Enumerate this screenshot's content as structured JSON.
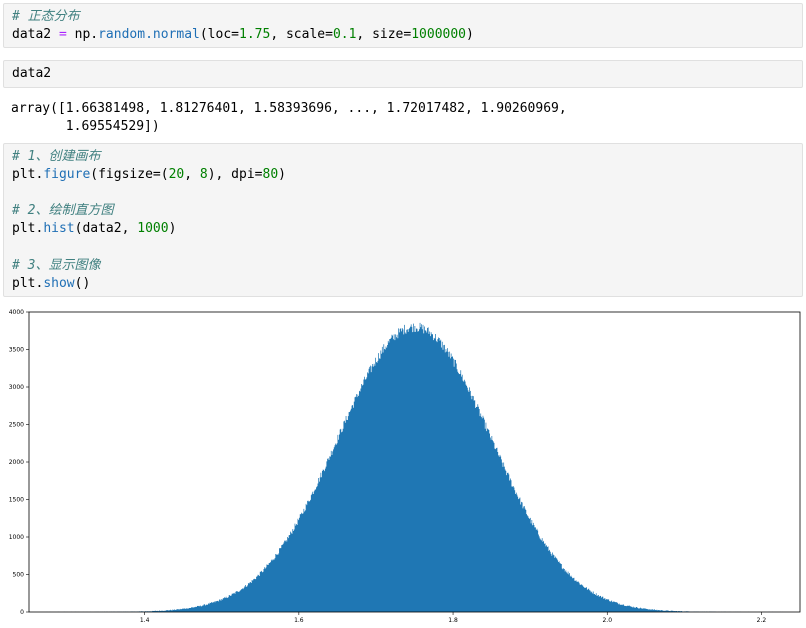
{
  "cell1": {
    "comment": "# 正态分布",
    "code": {
      "var": "data2",
      "eq": " = ",
      "mod": "np.",
      "fn": "random.normal",
      "open": "(loc=",
      "loc": "1.75",
      "mid1": ", scale=",
      "scale": "0.1",
      "mid2": ", size=",
      "size": "1000000",
      "close": ")"
    }
  },
  "cell2": {
    "code": "data2"
  },
  "output": {
    "line1": "array([1.66381498, 1.81276401, 1.58393696, ..., 1.72017482, 1.90260969,",
    "line2": "       1.69554529])"
  },
  "cell3": {
    "c1": "# 1、创建画布",
    "l1": {
      "a": "plt.",
      "b": "figure",
      "c": "(figsize=(",
      "d": "20",
      "e": ", ",
      "f": "8",
      "g": "), dpi=",
      "h": "80",
      "i": ")"
    },
    "c2": "# 2、绘制直方图",
    "l2": {
      "a": "plt.",
      "b": "hist",
      "c": "(data2, ",
      "d": "1000",
      "e": ")"
    },
    "c3": "# 3、显示图像",
    "l3": {
      "a": "plt.",
      "b": "show",
      "c": "()"
    }
  },
  "chart_data": {
    "type": "histogram",
    "distribution": "normal",
    "loc": 1.75,
    "scale": 0.1,
    "size": 1000000,
    "bins": 1000,
    "color": "#1f77b4",
    "xlim": [
      1.25,
      2.25
    ],
    "ylim": [
      0,
      4000
    ],
    "peak_count": 3800,
    "xticks": [
      "1.4",
      "1.6",
      "1.8",
      "2.0",
      "2.2"
    ],
    "xtick_values": [
      1.4,
      1.6,
      1.8,
      2.0,
      2.2
    ],
    "yticks": [
      "0",
      "500",
      "1000",
      "1500",
      "2000",
      "2500",
      "3000",
      "3500",
      "4000"
    ],
    "ytick_values": [
      0,
      500,
      1000,
      1500,
      2000,
      2500,
      3000,
      3500,
      4000
    ],
    "grid": false,
    "title": "",
    "xlabel": "",
    "ylabel": ""
  }
}
